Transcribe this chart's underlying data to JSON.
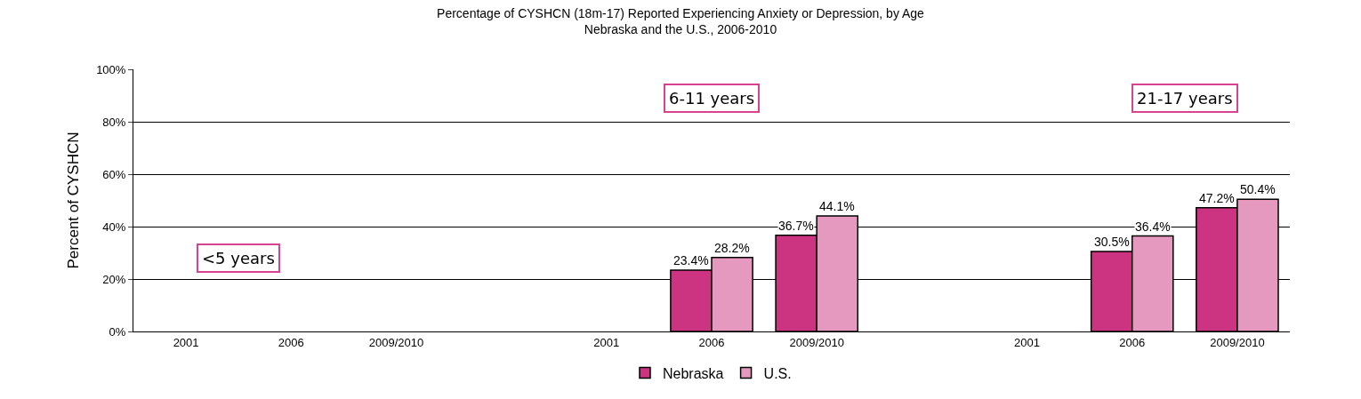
{
  "chart_data": {
    "type": "bar",
    "title": "Percentage of CYSHCN (18m-17) Reported Experiencing Anxiety or Depression, by Age",
    "subtitle": "Nebraska and the U.S., 2006-2010",
    "ylabel": "Percent of CYSHCN",
    "categories": [
      "2001",
      "2006",
      "2009/2010",
      null,
      "2001",
      "2006",
      "2009/2010",
      null,
      "2001",
      "2006",
      "2009/2010"
    ],
    "series": [
      {
        "name": "Nebraska",
        "color": "#cc3380",
        "values": [
          null,
          null,
          null,
          null,
          null,
          23.4,
          36.7,
          null,
          null,
          30.5,
          47.2
        ],
        "value_labels": [
          null,
          null,
          null,
          null,
          null,
          "23.4%",
          "36.7%",
          null,
          null,
          "30.5%",
          "47.2%"
        ]
      },
      {
        "name": "U.S.",
        "color": "#e699bf",
        "values": [
          null,
          null,
          null,
          null,
          null,
          28.2,
          44.1,
          null,
          null,
          36.4,
          50.4
        ],
        "value_labels": [
          null,
          null,
          null,
          null,
          null,
          "28.2%",
          "44.1%",
          null,
          null,
          "36.4%",
          "50.4%"
        ]
      }
    ],
    "annotations": [
      "<5 years",
      "6-11 years",
      "21-17 years"
    ],
    "ylim": [
      0,
      100
    ],
    "yticks": [
      {
        "value": 0,
        "label": "0%"
      },
      {
        "value": 20,
        "label": "20%"
      },
      {
        "value": 40,
        "label": "40%"
      },
      {
        "value": 60,
        "label": "60%"
      },
      {
        "value": 80,
        "label": "80%"
      },
      {
        "value": 100,
        "label": "100%"
      }
    ],
    "grid": "y",
    "legend": "bottom"
  }
}
